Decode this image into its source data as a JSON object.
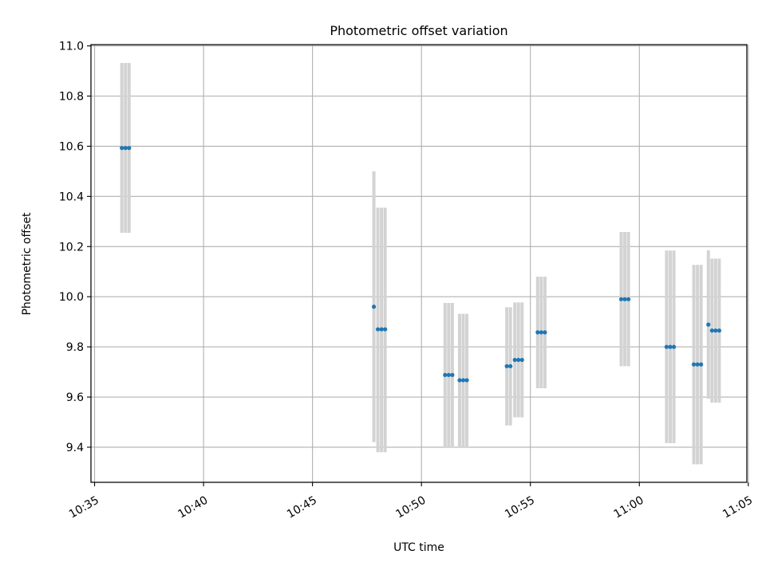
{
  "chart_data": {
    "type": "scatter",
    "title": "Photometric offset variation",
    "xlabel": "UTC time",
    "ylabel": "Photometric offset",
    "x_is_time": true,
    "xlim": [
      "10:34:50",
      "11:04:56"
    ],
    "ylim": [
      9.26,
      11.005
    ],
    "x_ticks": [
      "10:35",
      "10:40",
      "10:45",
      "10:50",
      "10:55",
      "11:00",
      "11:05"
    ],
    "y_ticks": [
      9.4,
      9.6,
      9.8,
      10.0,
      10.2,
      10.4,
      10.6,
      10.8,
      11.0
    ],
    "grid": true,
    "marker_color": "#1f77b4",
    "errorbar_color": "#d3d3d3",
    "series": [
      {
        "points": [
          {
            "x": "10:36:15",
            "y": 10.593,
            "ylow": 10.255,
            "yhigh": 10.932
          },
          {
            "x": "10:36:25",
            "y": 10.593,
            "ylow": 10.255,
            "yhigh": 10.932
          },
          {
            "x": "10:36:35",
            "y": 10.593,
            "ylow": 10.255,
            "yhigh": 10.932
          },
          {
            "x": "10:47:49",
            "y": 9.96,
            "ylow": 9.42,
            "yhigh": 10.5
          },
          {
            "x": "10:48:00",
            "y": 9.87,
            "ylow": 9.38,
            "yhigh": 10.355
          },
          {
            "x": "10:48:10",
            "y": 9.87,
            "ylow": 9.38,
            "yhigh": 10.355
          },
          {
            "x": "10:48:20",
            "y": 9.87,
            "ylow": 9.38,
            "yhigh": 10.355
          },
          {
            "x": "10:51:05",
            "y": 9.688,
            "ylow": 9.4,
            "yhigh": 9.975
          },
          {
            "x": "10:51:15",
            "y": 9.688,
            "ylow": 9.4,
            "yhigh": 9.975
          },
          {
            "x": "10:51:25",
            "y": 9.688,
            "ylow": 9.4,
            "yhigh": 9.975
          },
          {
            "x": "10:51:45",
            "y": 9.667,
            "ylow": 9.4,
            "yhigh": 9.932
          },
          {
            "x": "10:51:55",
            "y": 9.667,
            "ylow": 9.4,
            "yhigh": 9.932
          },
          {
            "x": "10:52:05",
            "y": 9.667,
            "ylow": 9.4,
            "yhigh": 9.932
          },
          {
            "x": "10:53:55",
            "y": 9.723,
            "ylow": 9.487,
            "yhigh": 9.958
          },
          {
            "x": "10:54:05",
            "y": 9.723,
            "ylow": 9.487,
            "yhigh": 9.958
          },
          {
            "x": "10:54:17",
            "y": 9.748,
            "ylow": 9.519,
            "yhigh": 9.977
          },
          {
            "x": "10:54:27",
            "y": 9.748,
            "ylow": 9.519,
            "yhigh": 9.977
          },
          {
            "x": "10:54:37",
            "y": 9.748,
            "ylow": 9.519,
            "yhigh": 9.977
          },
          {
            "x": "10:55:20",
            "y": 9.858,
            "ylow": 9.635,
            "yhigh": 10.08
          },
          {
            "x": "10:55:30",
            "y": 9.858,
            "ylow": 9.635,
            "yhigh": 10.08
          },
          {
            "x": "10:55:40",
            "y": 9.858,
            "ylow": 9.635,
            "yhigh": 10.08
          },
          {
            "x": "10:59:10",
            "y": 9.99,
            "ylow": 9.723,
            "yhigh": 10.258
          },
          {
            "x": "10:59:20",
            "y": 9.99,
            "ylow": 9.723,
            "yhigh": 10.258
          },
          {
            "x": "10:59:30",
            "y": 9.99,
            "ylow": 9.723,
            "yhigh": 10.258
          },
          {
            "x": "11:01:15",
            "y": 9.8,
            "ylow": 9.416,
            "yhigh": 10.184
          },
          {
            "x": "11:01:25",
            "y": 9.8,
            "ylow": 9.416,
            "yhigh": 10.184
          },
          {
            "x": "11:01:35",
            "y": 9.8,
            "ylow": 9.416,
            "yhigh": 10.184
          },
          {
            "x": "11:02:30",
            "y": 9.73,
            "ylow": 9.332,
            "yhigh": 10.127
          },
          {
            "x": "11:02:40",
            "y": 9.73,
            "ylow": 9.332,
            "yhigh": 10.127
          },
          {
            "x": "11:02:50",
            "y": 9.73,
            "ylow": 9.332,
            "yhigh": 10.127
          },
          {
            "x": "11:03:10",
            "y": 9.889,
            "ylow": 9.593,
            "yhigh": 10.185
          },
          {
            "x": "11:03:20",
            "y": 9.865,
            "ylow": 9.578,
            "yhigh": 10.152
          },
          {
            "x": "11:03:30",
            "y": 9.865,
            "ylow": 9.578,
            "yhigh": 10.152
          },
          {
            "x": "11:03:40",
            "y": 9.865,
            "ylow": 9.578,
            "yhigh": 10.152
          }
        ]
      }
    ]
  }
}
